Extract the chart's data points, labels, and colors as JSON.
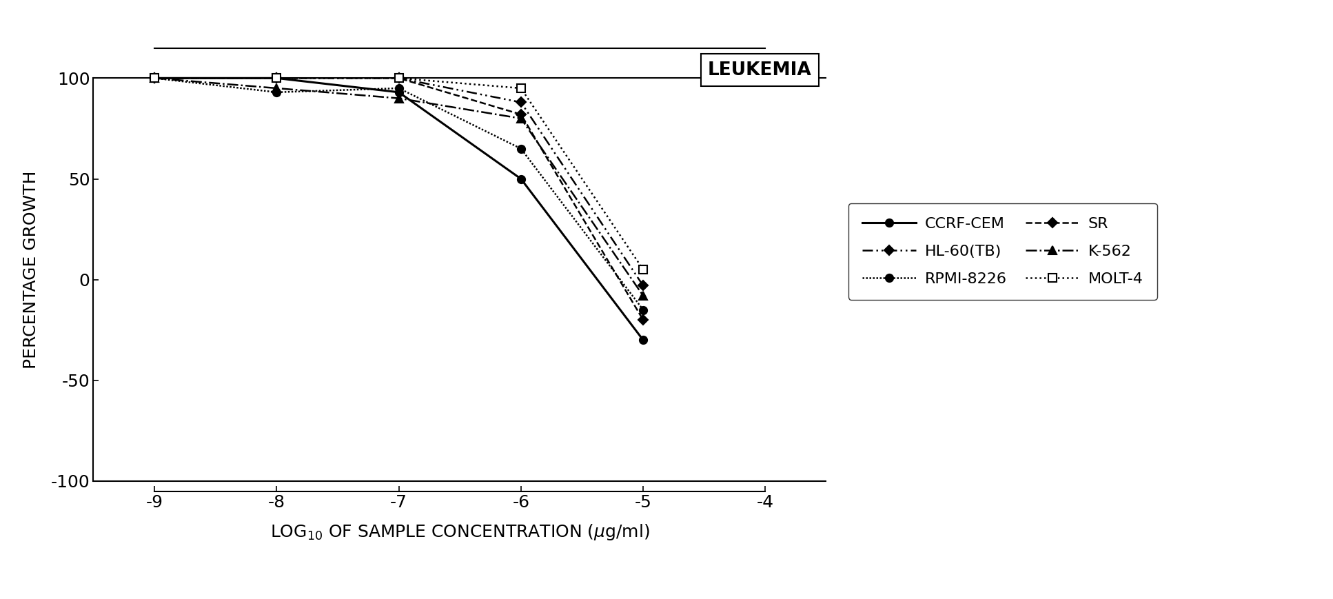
{
  "title": "LEUKEMIA",
  "ylabel": "PERCENTAGE GROWTH",
  "xlim": [
    -9.5,
    -3.5
  ],
  "ylim": [
    -105,
    115
  ],
  "xticks": [
    -9,
    -8,
    -7,
    -6,
    -5,
    -4
  ],
  "yticks": [
    -100,
    -50,
    0,
    50,
    100
  ],
  "series": [
    {
      "name": "CCRF-CEM",
      "x": [
        -9,
        -8,
        -7,
        -6,
        -5
      ],
      "y": [
        100,
        100,
        93,
        50,
        -30
      ],
      "linestyle": "solid",
      "marker": "o",
      "marker_filled": true,
      "linewidth": 2.2,
      "markersize": 8
    },
    {
      "name": "RPMI-8226",
      "x": [
        -9,
        -8,
        -7,
        -6,
        -5
      ],
      "y": [
        100,
        93,
        95,
        65,
        -15
      ],
      "linestyle": "dotted_dense",
      "marker": "o",
      "marker_filled": true,
      "linewidth": 1.8,
      "markersize": 8
    },
    {
      "name": "K-562",
      "x": [
        -9,
        -8,
        -7,
        -6,
        -5
      ],
      "y": [
        100,
        95,
        90,
        80,
        -8
      ],
      "linestyle": "dashdot",
      "marker": "^",
      "marker_filled": true,
      "linewidth": 1.8,
      "markersize": 8
    },
    {
      "name": "HL-60(TB)",
      "x": [
        -9,
        -8,
        -7,
        -6,
        -5
      ],
      "y": [
        100,
        100,
        100,
        88,
        -3
      ],
      "linestyle": "dash_dot_dot",
      "marker": "D",
      "marker_filled": true,
      "linewidth": 1.8,
      "markersize": 7
    },
    {
      "name": "SR",
      "x": [
        -9,
        -8,
        -7,
        -6,
        -5
      ],
      "y": [
        100,
        100,
        100,
        82,
        -20
      ],
      "linestyle": "dashed",
      "marker": "D",
      "marker_filled": true,
      "linewidth": 1.8,
      "markersize": 7
    },
    {
      "name": "MOLT-4",
      "x": [
        -9,
        -8,
        -7,
        -6,
        -5
      ],
      "y": [
        100,
        100,
        100,
        95,
        5
      ],
      "linestyle": "dotted",
      "marker": "s",
      "marker_filled": false,
      "linewidth": 1.8,
      "markersize": 8
    }
  ],
  "background_color": "#ffffff"
}
